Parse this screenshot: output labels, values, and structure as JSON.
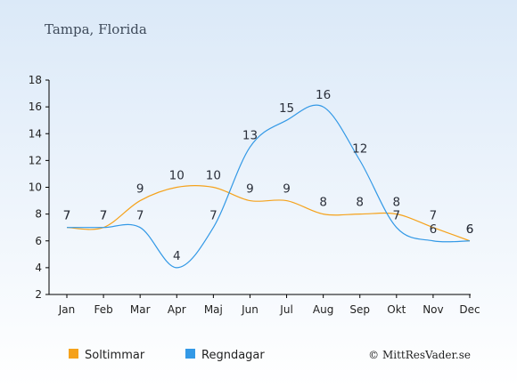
{
  "chart_data": {
    "type": "line",
    "title": "Tampa, Florida",
    "categories": [
      "Jan",
      "Feb",
      "Mar",
      "Apr",
      "Maj",
      "Jun",
      "Jul",
      "Aug",
      "Sep",
      "Okt",
      "Nov",
      "Dec"
    ],
    "yticks": [
      2,
      4,
      6,
      8,
      10,
      12,
      14,
      16,
      18
    ],
    "ylim": [
      2,
      18
    ],
    "grid": false,
    "legend_position": "bottom-left",
    "series": [
      {
        "name": "Soltimmar",
        "color": "#f5a21b",
        "values": [
          7,
          7,
          9,
          10,
          10,
          9,
          9,
          8,
          8,
          8,
          7,
          6
        ]
      },
      {
        "name": "Regndagar",
        "color": "#3399e6",
        "values": [
          7,
          7,
          7,
          4,
          7,
          13,
          15,
          16,
          12,
          7,
          6,
          6
        ]
      }
    ],
    "credit": "© MittResVader.se"
  }
}
